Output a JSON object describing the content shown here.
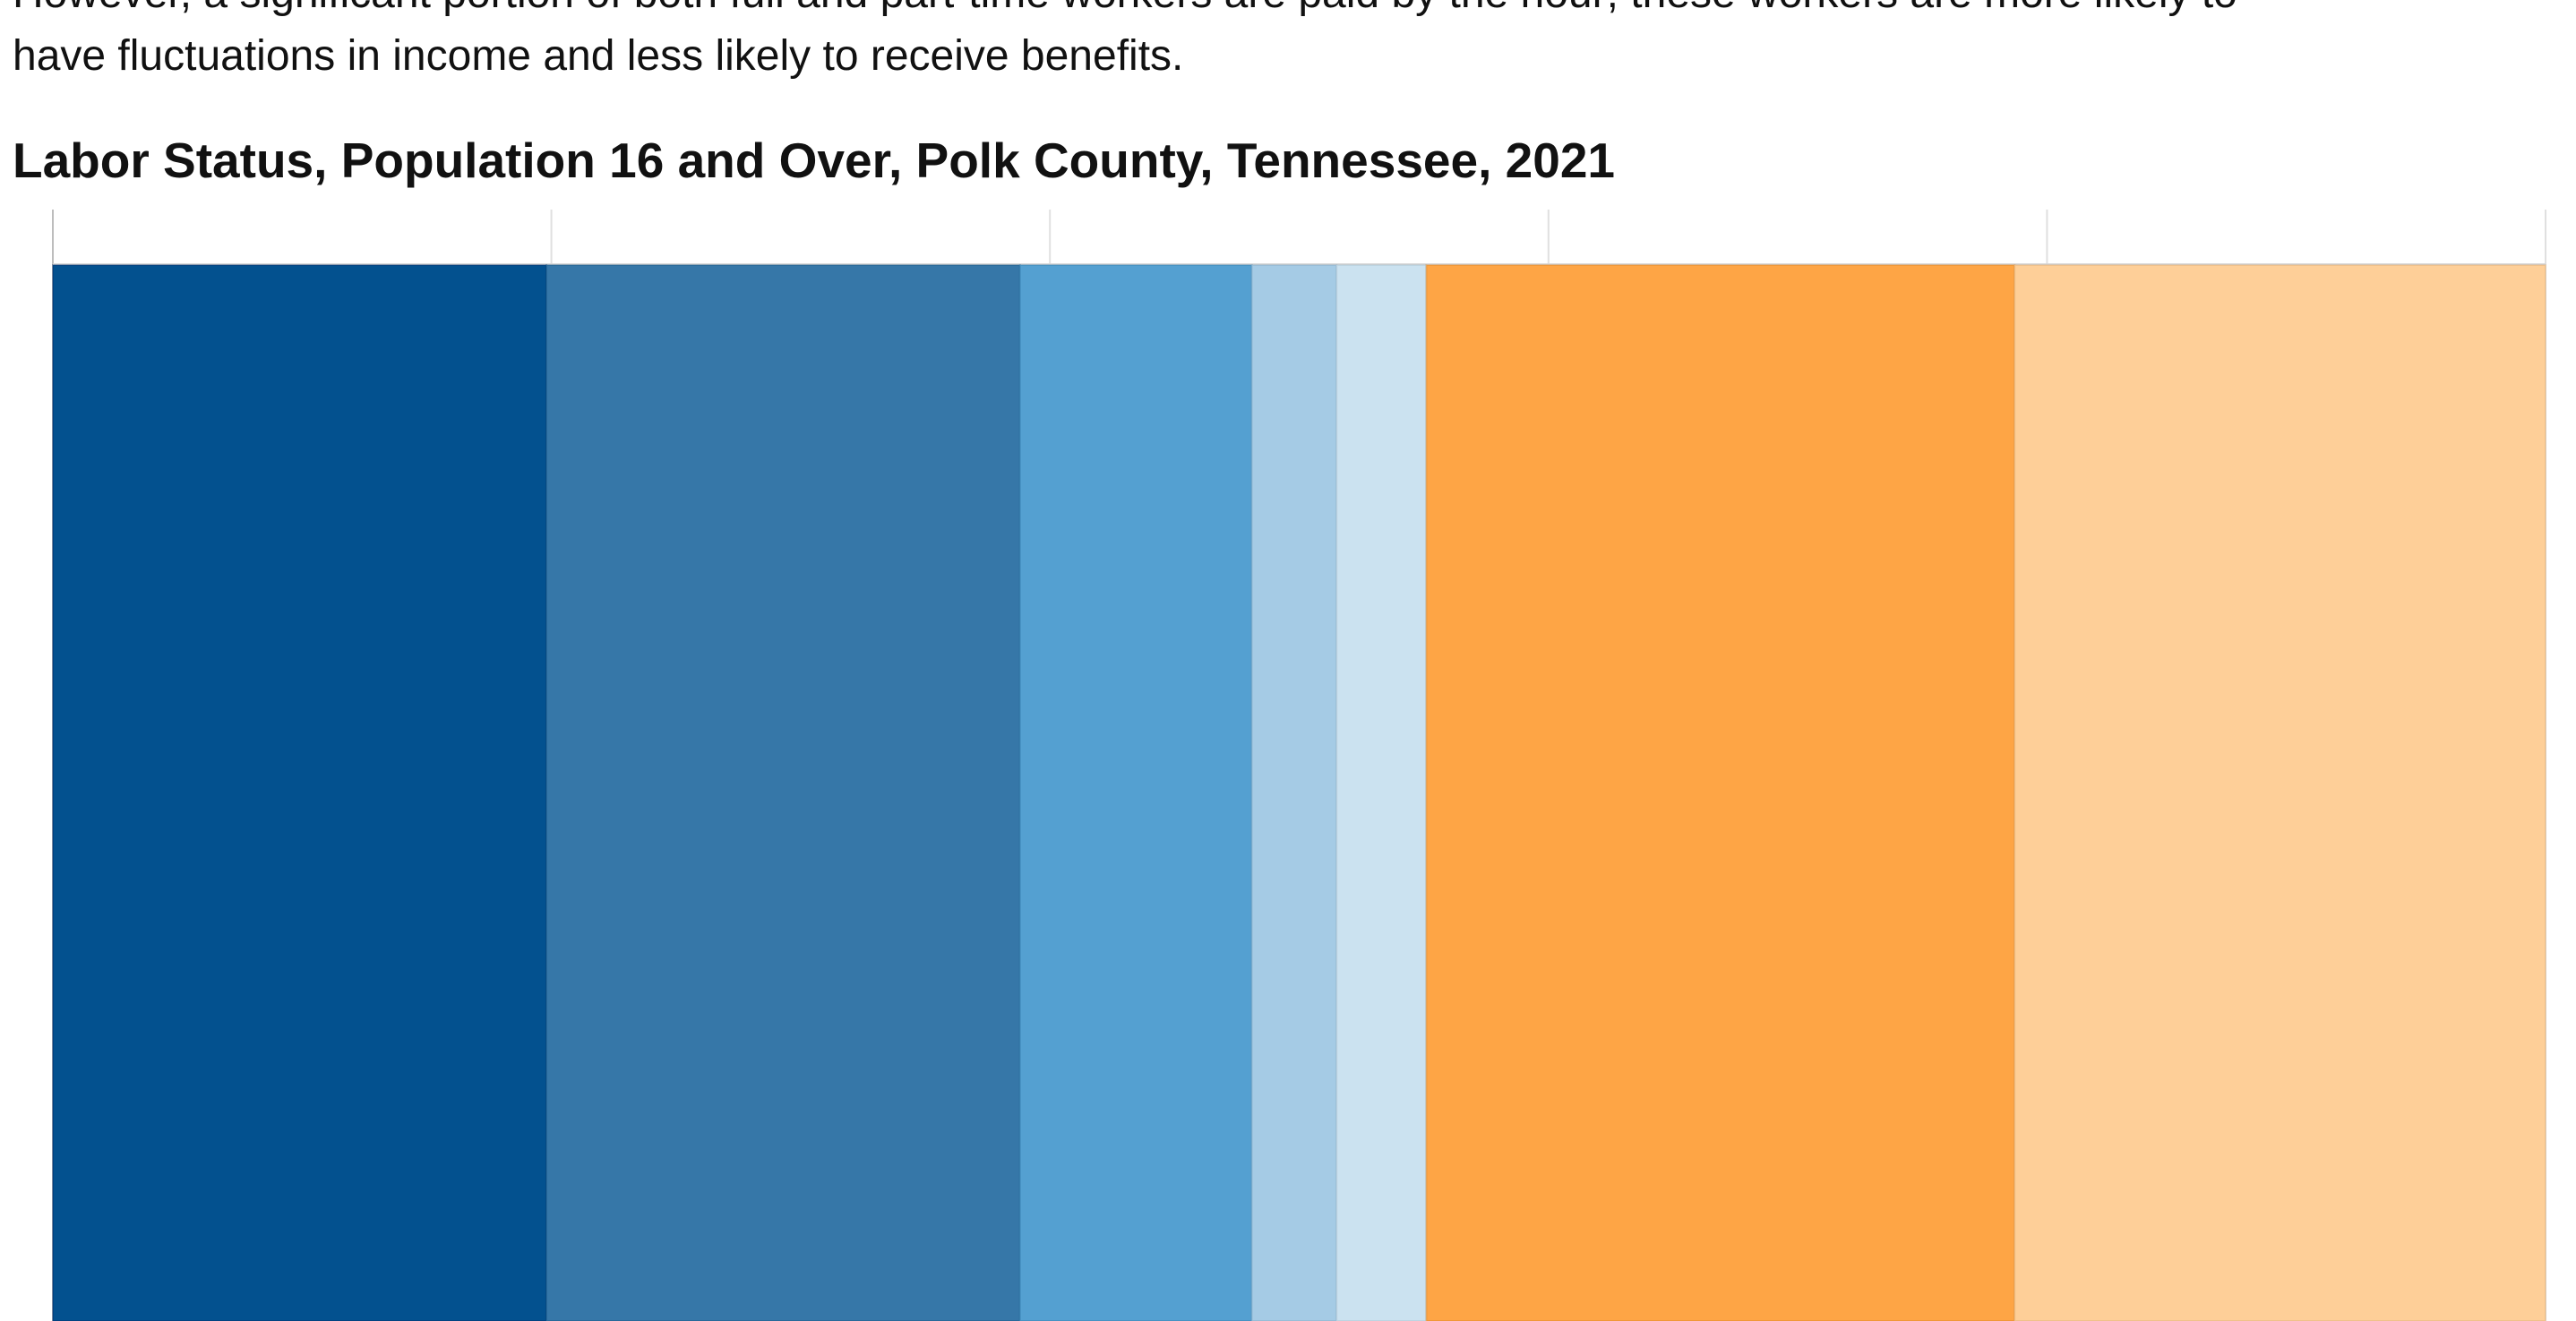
{
  "intro": {
    "line1": "However, a significant portion of both full and part-time workers are paid by the hour; these workers are more likely to",
    "line2": "have fluctuations in income and less likely to receive benefits."
  },
  "chart_data": {
    "type": "bar",
    "orientation": "horizontal-stacked",
    "title": "Labor Status, Population 16 and Over, Polk County, Tennessee, 2021",
    "xlim": [
      0,
      100
    ],
    "grid": true,
    "gridlines": [
      0,
      20,
      40,
      60,
      80,
      100
    ],
    "categories": [
      ""
    ],
    "series": [
      {
        "value": 19.8,
        "color": "#03518f"
      },
      {
        "value": 19.0,
        "color": "#3677a8"
      },
      {
        "value": 9.3,
        "color": "#54a0d1"
      },
      {
        "value": 3.4,
        "color": "#a5cbe5"
      },
      {
        "value": 3.6,
        "color": "#cbe2f0"
      },
      {
        "value": 23.6,
        "color": "#fea545"
      },
      {
        "value": 21.3,
        "color": "#fecf98"
      }
    ]
  }
}
